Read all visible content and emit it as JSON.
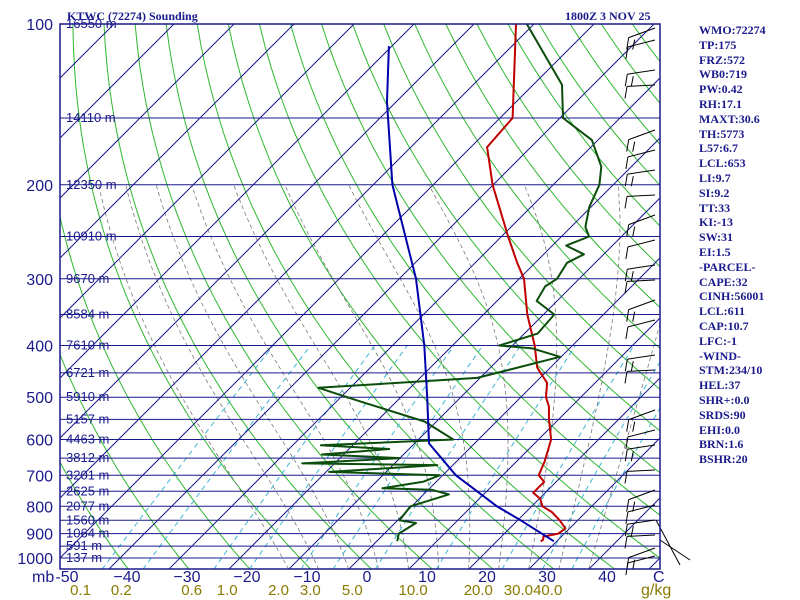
{
  "header": {
    "title": "KTWC (72274) Sounding",
    "datetime": "1800Z  3 NOV 25"
  },
  "colors": {
    "frame": "#1a1a8c",
    "isobar": "#1a1a8c",
    "isotherm": "#1a1a8c",
    "dry_adiabat": "#2fb82f",
    "moist_adiabat": "#7a7a7a",
    "mixing_ratio": "#3fb6d8",
    "temperature": "#c00000",
    "dewpoint": "#0b4d0b",
    "parcel": "#0000aa",
    "wind": "#000000",
    "mixing_label": "#8a7a00"
  },
  "stats": [
    "WMO:72274",
    "TP:175",
    "FRZ:572",
    "WB0:719",
    "PW:0.42",
    "RH:17.1",
    "MAXT:30.6",
    "TH:5773",
    "L57:6.7",
    "LCL:653",
    "LI:9.7",
    "SI:9.2",
    "TT:33",
    "KI:-13",
    "SW:31",
    "EI:1.5",
    "-PARCEL-",
    "CAPE:32",
    "CINH:56001",
    "LCL:611",
    "CAP:10.7",
    "LFC:-1",
    "-WIND-",
    "STM:234/10",
    "HEL:37",
    "SHR+:0.0",
    "SRDS:90",
    "EHI:0.0",
    "BRN:1.6",
    "BSHR:20"
  ],
  "chart_data": {
    "type": "line",
    "title": "",
    "xlabel": "",
    "ylabel": "mb",
    "xlim": [
      -50,
      50
    ],
    "ylim": [
      1000,
      100
    ],
    "y_scale": "log",
    "x_axis_label_c": "C",
    "y_axis_label_mb": "mb",
    "mixing_ratio_unit": "g/kg",
    "temperature_ticks": [
      -50,
      -40,
      -30,
      -20,
      -10,
      0,
      10,
      20,
      30,
      40
    ],
    "temperature_tick_labels": [
      "-50",
      "−40",
      "−30",
      "−20",
      "−10",
      "0",
      "10",
      "20",
      "30",
      "40"
    ],
    "pressure_ticks": [
      100,
      200,
      300,
      400,
      500,
      600,
      700,
      800,
      900,
      1000
    ],
    "pressure_tick_labels": [
      "100",
      "200",
      "300",
      "400",
      "500",
      "600",
      "700",
      "800",
      "900",
      "1000"
    ],
    "height_labels": [
      {
        "p": 100,
        "label": "16550 m"
      },
      {
        "p": 150,
        "label": "14110 m"
      },
      {
        "p": 200,
        "label": "12350 m"
      },
      {
        "p": 250,
        "label": "10910 m"
      },
      {
        "p": 300,
        "label": "9670 m"
      },
      {
        "p": 350,
        "label": "8584 m"
      },
      {
        "p": 400,
        "label": "7610 m"
      },
      {
        "p": 450,
        "label": "6721 m"
      },
      {
        "p": 500,
        "label": "5910 m"
      },
      {
        "p": 550,
        "label": "5157 m"
      },
      {
        "p": 600,
        "label": "4463 m"
      },
      {
        "p": 650,
        "label": "3812 m"
      },
      {
        "p": 700,
        "label": "3201 m"
      },
      {
        "p": 750,
        "label": "2625 m"
      },
      {
        "p": 800,
        "label": "2077 m"
      },
      {
        "p": 850,
        "label": "1560 m"
      },
      {
        "p": 900,
        "label": "1064 m"
      },
      {
        "p": 950,
        "label": "591 m"
      },
      {
        "p": 1000,
        "label": "137 m"
      }
    ],
    "mixing_ratio_lines": [
      {
        "w": 0.1,
        "label": "0.1"
      },
      {
        "w": 0.2,
        "label": "0.2"
      },
      {
        "w": 0.6,
        "label": "0.6"
      },
      {
        "w": 1.0,
        "label": "1.0"
      },
      {
        "w": 2.0,
        "label": "2.0"
      },
      {
        "w": 3.0,
        "label": "3.0"
      },
      {
        "w": 5.0,
        "label": "5.0"
      },
      {
        "w": 10.0,
        "label": "10.0"
      },
      {
        "w": 20.0,
        "label": "20.0"
      },
      {
        "w": 30.0,
        "label": "30.0"
      },
      {
        "w": 40.0,
        "label": "40.0"
      }
    ],
    "series": [
      {
        "name": "",
        "kind": "temperature",
        "points": [
          [
            930,
            27.3
          ],
          [
            925,
            27.5
          ],
          [
            912,
            27.0
          ],
          [
            900,
            29.0
          ],
          [
            880,
            29.3
          ],
          [
            850,
            27.0
          ],
          [
            820,
            24.3
          ],
          [
            800,
            21.8
          ],
          [
            775,
            20.2
          ],
          [
            755,
            18.0
          ],
          [
            720,
            18.0
          ],
          [
            700,
            16.0
          ],
          [
            660,
            14.7
          ],
          [
            600,
            12.1
          ],
          [
            550,
            8.4
          ],
          [
            520,
            6.2
          ],
          [
            500,
            4.2
          ],
          [
            470,
            2.0
          ],
          [
            440,
            -2.2
          ],
          [
            400,
            -6.3
          ],
          [
            350,
            -12.7
          ],
          [
            300,
            -19.2
          ],
          [
            280,
            -23.0
          ],
          [
            250,
            -28.9
          ],
          [
            200,
            -40.1
          ],
          [
            170,
            -47.3
          ],
          [
            150,
            -47.9
          ],
          [
            100,
            -63.0
          ]
        ]
      },
      {
        "name": "",
        "kind": "dewpoint",
        "points": [
          [
            930,
            3.4
          ],
          [
            900,
            2.4
          ],
          [
            860,
            3.5
          ],
          [
            850,
            0.3
          ],
          [
            820,
            0.0
          ],
          [
            800,
            -0.2
          ],
          [
            760,
            4.2
          ],
          [
            745,
            0.5
          ],
          [
            740,
            -7.9
          ],
          [
            720,
            -2.2
          ],
          [
            700,
            -0.5
          ],
          [
            690,
            -19.5
          ],
          [
            670,
            -2.6
          ],
          [
            665,
            -25.4
          ],
          [
            650,
            -10.0
          ],
          [
            640,
            -23.6
          ],
          [
            625,
            -13.3
          ],
          [
            615,
            -25.3
          ],
          [
            600,
            -4.2
          ],
          [
            555,
            -12.0
          ],
          [
            510,
            -25.8
          ],
          [
            480,
            -35.3
          ],
          [
            460,
            -10.5
          ],
          [
            420,
            -0.2
          ],
          [
            405,
            -6.2
          ],
          [
            400,
            -12.2
          ],
          [
            380,
            -7.8
          ],
          [
            350,
            -8.2
          ],
          [
            330,
            -13.4
          ],
          [
            310,
            -14.4
          ],
          [
            300,
            -13.7
          ],
          [
            280,
            -14.7
          ],
          [
            270,
            -13.3
          ],
          [
            260,
            -17.7
          ],
          [
            250,
            -15.4
          ],
          [
            240,
            -17.6
          ],
          [
            220,
            -20.3
          ],
          [
            200,
            -22.3
          ],
          [
            185,
            -25.0
          ],
          [
            165,
            -31.0
          ],
          [
            150,
            -39.5
          ],
          [
            130,
            -45.2
          ],
          [
            100,
            -61.2
          ]
        ]
      },
      {
        "name": "",
        "kind": "parcel",
        "points": [
          [
            930,
            29.5
          ],
          [
            850,
            20.5
          ],
          [
            800,
            14.2
          ],
          [
            700,
            2.2
          ],
          [
            610,
            -7.6
          ],
          [
            500,
            -15.6
          ],
          [
            400,
            -24.7
          ],
          [
            300,
            -37.2
          ],
          [
            200,
            -56.8
          ],
          [
            140,
            -71.5
          ],
          [
            110,
            -80.5
          ]
        ]
      }
    ],
    "wind_barbs_present": true
  }
}
